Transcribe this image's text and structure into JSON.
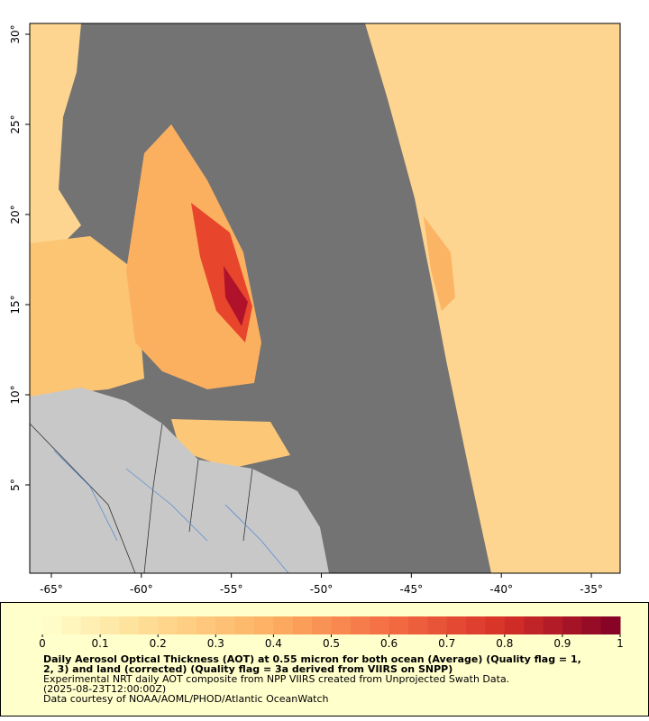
{
  "map": {
    "xlim": [
      -66.2,
      -33.4
    ],
    "ylim": [
      0.1,
      30.6
    ],
    "xticks": [
      {
        "value": -65,
        "label": "-65°"
      },
      {
        "value": -60,
        "label": "-60°"
      },
      {
        "value": -55,
        "label": "-55°"
      },
      {
        "value": -50,
        "label": "-50°"
      },
      {
        "value": -45,
        "label": "-45°"
      },
      {
        "value": -40,
        "label": "-40°"
      },
      {
        "value": -35,
        "label": "-35°"
      }
    ],
    "yticks": [
      {
        "value": 5,
        "label": "5°"
      },
      {
        "value": 10,
        "label": "10°"
      },
      {
        "value": 15,
        "label": "15°"
      },
      {
        "value": 20,
        "label": "20°"
      },
      {
        "value": 25,
        "label": "25°"
      },
      {
        "value": 30,
        "label": "30°"
      }
    ]
  },
  "colorbar": {
    "lim": [
      0,
      1
    ],
    "ticks": [
      0,
      0.1,
      0.2,
      0.3,
      0.4,
      0.5,
      0.6,
      0.7,
      0.8,
      0.9,
      1
    ]
  },
  "caption": {
    "title": [
      "Daily Aerosol Optical Thickness (AOT) at 0.55 micron for both ocean (Average) (Quality flag = 1,",
      "2, 3) and land (corrected) (Quality flag = 3a derived from VIIRS on SNPP)"
    ],
    "lines": [
      "Experimental NRT daily AOT composite from NPP VIIRS created from Unprojected Swath Data.",
      "(2025-08-23T12:00:00Z)",
      "Data courtesy of NOAA/AOML/PHOD/Atlantic OceanWatch"
    ]
  }
}
